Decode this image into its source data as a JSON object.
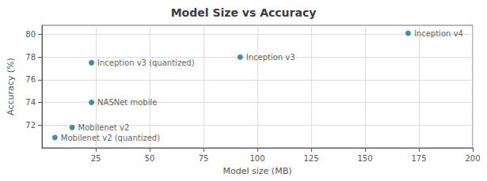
{
  "chart_data": {
    "type": "scatter",
    "title": "Model Size vs Accuracy",
    "xlabel": "Model size (MB)",
    "ylabel": "Accuracy (%)",
    "x": [
      6,
      14,
      23,
      23,
      92,
      170
    ],
    "values": [
      70.9,
      71.8,
      74.0,
      77.5,
      78.0,
      80.1
    ],
    "annotations": [
      "Mobilenet v2 (quantized)",
      "Mobilenet v2",
      "NASNet mobile",
      "Inception v3 (quantized)",
      "Inception v3",
      "Inception v4"
    ],
    "color": "#1a6e8e",
    "xlim": [
      0,
      200
    ],
    "xticks": [
      25,
      50,
      75,
      100,
      125,
      150,
      175,
      200
    ],
    "ylim": [
      70.0,
      80.8
    ],
    "yticks": [
      72,
      74,
      76,
      78,
      80
    ],
    "grid": true
  }
}
